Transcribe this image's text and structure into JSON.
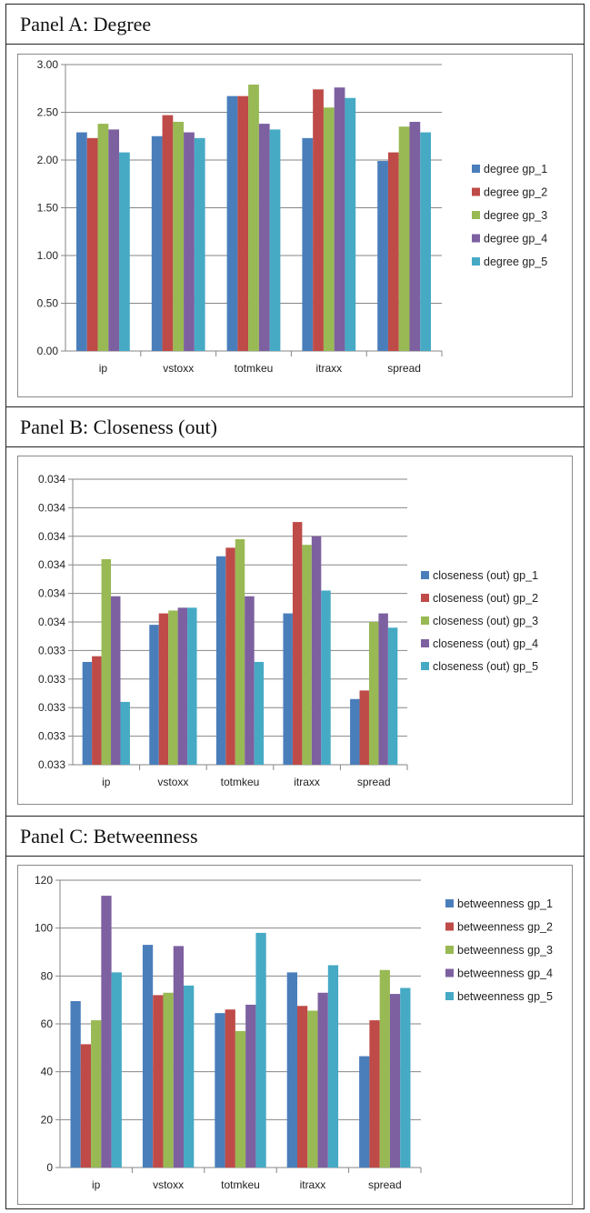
{
  "colors": {
    "gp_1": "#4a7ebb",
    "gp_2": "#be4b48",
    "gp_3": "#98b954",
    "gp_4": "#7d60a0",
    "gp_5": "#46aac5",
    "gridline": "#868686",
    "axis": "#868686"
  },
  "chart_data": [
    {
      "type": "bar",
      "title": "Panel A: Degree",
      "categories": [
        "ip",
        "vstoxx",
        "totmkeu",
        "itraxx",
        "spread"
      ],
      "ylim": [
        0,
        3
      ],
      "ytick_values": [
        0,
        0.5,
        1,
        1.5,
        2,
        2.5,
        3
      ],
      "ytick_labels": [
        "0.00",
        "0.50",
        "1.00",
        "1.50",
        "2.00",
        "2.50",
        "3.00"
      ],
      "grid": true,
      "legend_position": "right",
      "series": [
        {
          "name": "degree gp_1",
          "values": [
            2.29,
            2.25,
            2.67,
            2.23,
            1.99
          ]
        },
        {
          "name": "degree gp_2",
          "values": [
            2.23,
            2.47,
            2.67,
            2.74,
            2.08
          ]
        },
        {
          "name": "degree gp_3",
          "values": [
            2.38,
            2.4,
            2.79,
            2.55,
            2.35
          ]
        },
        {
          "name": "degree gp_4",
          "values": [
            2.32,
            2.29,
            2.38,
            2.76,
            2.4
          ]
        },
        {
          "name": "degree gp_5",
          "values": [
            2.08,
            2.23,
            2.32,
            2.65,
            2.29
          ]
        }
      ]
    },
    {
      "type": "bar",
      "title": "Panel B: Closeness (out)",
      "categories": [
        "ip",
        "vstoxx",
        "totmkeu",
        "itraxx",
        "spread"
      ],
      "ylim": [
        0,
        10
      ],
      "ytick_values": [
        0,
        1,
        2,
        3,
        4,
        5,
        6,
        7,
        8,
        9,
        10
      ],
      "ytick_labels": [
        "0.033",
        "0.033",
        "0.033",
        "0.033",
        "0.033",
        "0.034",
        "0.034",
        "0.034",
        "0.034",
        "0.034",
        "0.034"
      ],
      "grid": true,
      "legend_position": "right",
      "series": [
        {
          "name": "closeness (out) gp_1",
          "values": [
            3.6,
            4.9,
            7.3,
            5.3,
            2.3
          ]
        },
        {
          "name": "closeness (out) gp_2",
          "values": [
            3.8,
            5.3,
            7.6,
            8.5,
            2.6
          ]
        },
        {
          "name": "closeness (out) gp_3",
          "values": [
            7.2,
            5.4,
            7.9,
            7.7,
            5.0
          ]
        },
        {
          "name": "closeness (out) gp_4",
          "values": [
            5.9,
            5.5,
            5.9,
            8.0,
            5.3
          ]
        },
        {
          "name": "closeness (out) gp_5",
          "values": [
            2.2,
            5.5,
            3.6,
            6.1,
            4.8
          ]
        }
      ]
    },
    {
      "type": "bar",
      "title": "Panel C: Betweenness",
      "categories": [
        "ip",
        "vstoxx",
        "totmkeu",
        "itraxx",
        "spread"
      ],
      "ylim": [
        0,
        120
      ],
      "ytick_values": [
        0,
        20,
        40,
        60,
        80,
        100,
        120
      ],
      "ytick_labels": [
        "0",
        "20",
        "40",
        "60",
        "80",
        "100",
        "120"
      ],
      "grid": true,
      "legend_position": "right",
      "series": [
        {
          "name": "betweenness gp_1",
          "values": [
            69.5,
            93,
            64.5,
            81.5,
            46.5
          ]
        },
        {
          "name": "betweenness gp_2",
          "values": [
            51.5,
            72,
            66,
            67.5,
            61.5
          ]
        },
        {
          "name": "betweenness gp_3",
          "values": [
            61.5,
            73,
            57,
            65.5,
            82.5
          ]
        },
        {
          "name": "betweenness gp_4",
          "values": [
            113.5,
            92.5,
            68,
            73,
            72.5
          ]
        },
        {
          "name": "betweenness gp_5",
          "values": [
            81.5,
            76,
            98,
            84.5,
            75
          ]
        }
      ]
    }
  ]
}
